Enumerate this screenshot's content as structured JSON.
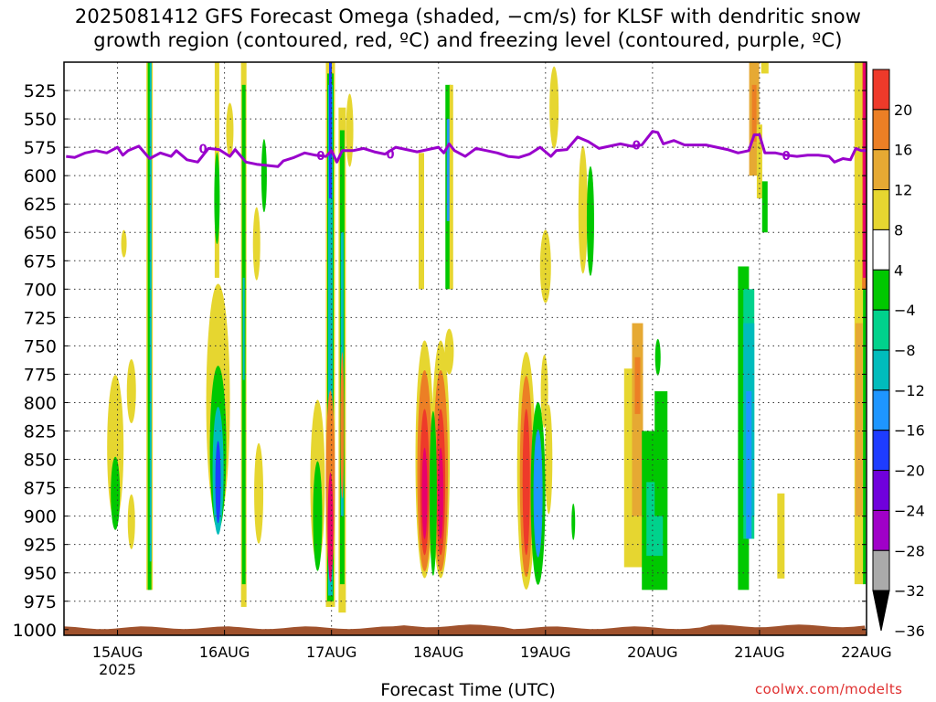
{
  "title_line1": "2025081412 GFS Forecast Omega (shaded, −cm/s) for KLSF with dendritic snow",
  "title_line2": "growth region (contoured, red, ºC) and freezing level (contoured, purple, ºC)",
  "credit": "coolwx.com/modelts",
  "chart_data": {
    "type": "heatmap",
    "title": "2025081412 GFS Forecast Omega (shaded, −cm/s) for KLSF with dendritic snow growth region (contoured, red, ºC) and freezing level (contoured, purple, ºC)",
    "xlabel": "Forecast Time (UTC)",
    "ylabel": "",
    "x_ticks": [
      "15AUG",
      "16AUG",
      "17AUG",
      "18AUG",
      "19AUG",
      "20AUG",
      "21AUG",
      "22AUG"
    ],
    "x_tick_year": "2025",
    "x_range_days": [
      14.5,
      22.0
    ],
    "y_ticks": [
      525,
      550,
      575,
      600,
      625,
      650,
      675,
      700,
      725,
      750,
      775,
      800,
      825,
      850,
      875,
      900,
      925,
      950,
      975,
      1000
    ],
    "y_range_hpa": [
      500,
      1005
    ],
    "y_scale": "pressure (hPa, inverted)",
    "grid": true,
    "colorbar": {
      "levels": [
        "20",
        "16",
        "12",
        "8",
        "4",
        "−4",
        "−8",
        "−12",
        "−16",
        "−20",
        "−24",
        "−28",
        "−32",
        "−36"
      ],
      "colors": [
        "#e8006c",
        "#ee3a2a",
        "#ec7f25",
        "#e6a933",
        "#e6d630",
        "#ffffff",
        "#00c800",
        "#00d28c",
        "#00bcbc",
        "#1e96ff",
        "#1e3cff",
        "#7000dc",
        "#a000c8",
        "#aaaaaa",
        "#000000"
      ]
    },
    "freezing_level": {
      "label": "0",
      "color": "#9900cc",
      "points": [
        [
          14.52,
          583
        ],
        [
          14.6,
          584
        ],
        [
          14.7,
          580
        ],
        [
          14.8,
          578
        ],
        [
          14.9,
          580
        ],
        [
          15.0,
          575
        ],
        [
          15.05,
          582
        ],
        [
          15.1,
          578
        ],
        [
          15.2,
          574
        ],
        [
          15.3,
          585
        ],
        [
          15.4,
          580
        ],
        [
          15.5,
          583
        ],
        [
          15.55,
          578
        ],
        [
          15.65,
          586
        ],
        [
          15.75,
          588
        ],
        [
          15.85,
          576
        ],
        [
          15.95,
          577
        ],
        [
          16.05,
          583
        ],
        [
          16.1,
          577
        ],
        [
          16.2,
          588
        ],
        [
          16.3,
          590
        ],
        [
          16.4,
          591
        ],
        [
          16.5,
          592
        ],
        [
          16.55,
          587
        ],
        [
          16.65,
          584
        ],
        [
          16.75,
          580
        ],
        [
          16.85,
          582
        ],
        [
          16.95,
          583
        ],
        [
          17.0,
          578
        ],
        [
          17.05,
          588
        ],
        [
          17.1,
          578
        ],
        [
          17.2,
          578
        ],
        [
          17.3,
          576
        ],
        [
          17.4,
          579
        ],
        [
          17.5,
          581
        ],
        [
          17.6,
          575
        ],
        [
          17.7,
          577
        ],
        [
          17.8,
          579
        ],
        [
          17.9,
          577
        ],
        [
          18.0,
          575
        ],
        [
          18.05,
          580
        ],
        [
          18.1,
          572
        ],
        [
          18.15,
          578
        ],
        [
          18.25,
          583
        ],
        [
          18.35,
          576
        ],
        [
          18.45,
          578
        ],
        [
          18.55,
          580
        ],
        [
          18.65,
          583
        ],
        [
          18.75,
          584
        ],
        [
          18.85,
          581
        ],
        [
          18.95,
          575
        ],
        [
          19.0,
          579
        ],
        [
          19.05,
          583
        ],
        [
          19.1,
          578
        ],
        [
          19.2,
          577
        ],
        [
          19.3,
          566
        ],
        [
          19.4,
          570
        ],
        [
          19.5,
          576
        ],
        [
          19.6,
          574
        ],
        [
          19.7,
          572
        ],
        [
          19.8,
          574
        ],
        [
          19.9,
          573
        ],
        [
          20.0,
          561
        ],
        [
          20.05,
          562
        ],
        [
          20.1,
          572
        ],
        [
          20.2,
          569
        ],
        [
          20.3,
          573
        ],
        [
          20.4,
          573
        ],
        [
          20.5,
          573
        ],
        [
          20.6,
          575
        ],
        [
          20.7,
          577
        ],
        [
          20.8,
          580
        ],
        [
          20.9,
          578
        ],
        [
          20.95,
          564
        ],
        [
          21.0,
          564
        ],
        [
          21.05,
          580
        ],
        [
          21.15,
          580
        ],
        [
          21.25,
          582
        ],
        [
          21.35,
          583
        ],
        [
          21.45,
          582
        ],
        [
          21.55,
          582
        ],
        [
          21.65,
          583
        ],
        [
          21.7,
          588
        ],
        [
          21.78,
          585
        ],
        [
          21.85,
          586
        ],
        [
          21.9,
          576
        ],
        [
          21.95,
          578
        ],
        [
          22.0,
          578
        ]
      ]
    },
    "ground_hpa": 1000
  }
}
